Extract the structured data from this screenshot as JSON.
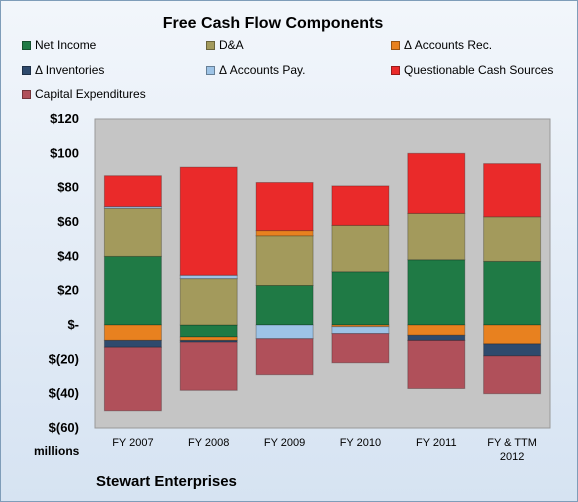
{
  "chart_data": {
    "type": "bar",
    "stacked": true,
    "title": "Free Cash Flow Components",
    "units_label": "millions",
    "company": "Stewart Enterprises",
    "categories": [
      "FY 2007",
      "FY 2008",
      "FY 2009",
      "FY 2010",
      "FY 2011",
      "FY & TTM 2012"
    ],
    "y_ticks": [
      "$120",
      "$100",
      "$80",
      "$60",
      "$40",
      "$20",
      "$-",
      "$(20)",
      "$(40)",
      "$(60)"
    ],
    "ylim": [
      -60,
      120
    ],
    "grid": false,
    "legend_position": "top",
    "series": [
      {
        "name": "Net Income",
        "color": "#1f7a45",
        "values": [
          40,
          -7,
          23,
          31,
          38,
          37
        ]
      },
      {
        "name": "D&A",
        "color": "#a39a5c",
        "values": [
          28,
          27,
          29,
          27,
          27,
          26
        ]
      },
      {
        "name": "Δ Accounts Rec.",
        "color": "#e8811f",
        "values": [
          -9,
          -2,
          3,
          -1,
          -6,
          -11
        ]
      },
      {
        "name": "Δ Inventories",
        "color": "#2e4a6d",
        "values": [
          -4,
          -1,
          0,
          0,
          -3,
          -7
        ]
      },
      {
        "name": "Δ Accounts Pay.",
        "color": "#9dc3e6",
        "values": [
          1,
          2,
          -8,
          -4,
          0,
          0
        ]
      },
      {
        "name": "Questionable Cash Sources",
        "color": "#ea2a2a",
        "values": [
          18,
          63,
          28,
          23,
          35,
          31
        ]
      },
      {
        "name": "Capital Expenditures",
        "color": "#b0505a",
        "values": [
          -37,
          -28,
          -21,
          -17,
          -28,
          -22
        ]
      }
    ]
  }
}
